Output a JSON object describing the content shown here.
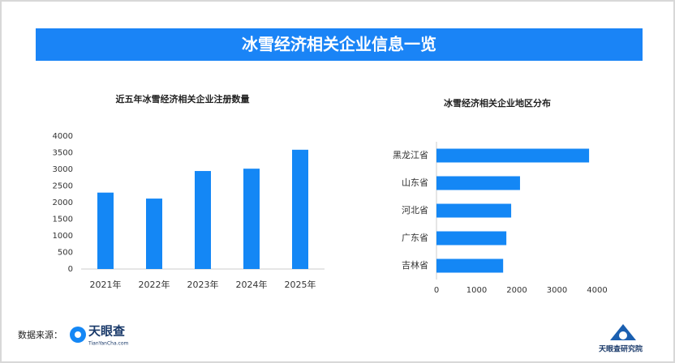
{
  "header": {
    "title": "冰雪经济相关企业信息一览"
  },
  "chart_data": [
    {
      "type": "bar",
      "title": "近五年冰雪经济相关企业注册数量",
      "categories": [
        "2021年",
        "2022年",
        "2023年",
        "2024年",
        "2025年"
      ],
      "values": [
        2300,
        2120,
        2950,
        3020,
        3590
      ],
      "color": "#1487f5",
      "ylim": [
        0,
        4000
      ],
      "yticks": [
        0,
        500,
        1000,
        1500,
        2000,
        2500,
        3000,
        3500,
        4000
      ]
    },
    {
      "type": "barh",
      "title": "冰雪经济相关企业地区分布",
      "categories": [
        "黑龙江省",
        "山东省",
        "河北省",
        "广东省",
        "吉林省"
      ],
      "values": [
        3800,
        2080,
        1860,
        1740,
        1660
      ],
      "color": "#1487f5",
      "xlim": [
        0,
        4000
      ],
      "xticks": [
        0,
        1000,
        2000,
        3000,
        4000
      ]
    }
  ],
  "footer": {
    "source_label": "数据来源：",
    "logo_text": "天眼查",
    "logo_url": "TianYanCha.com",
    "institute": "天眼查研究院"
  }
}
